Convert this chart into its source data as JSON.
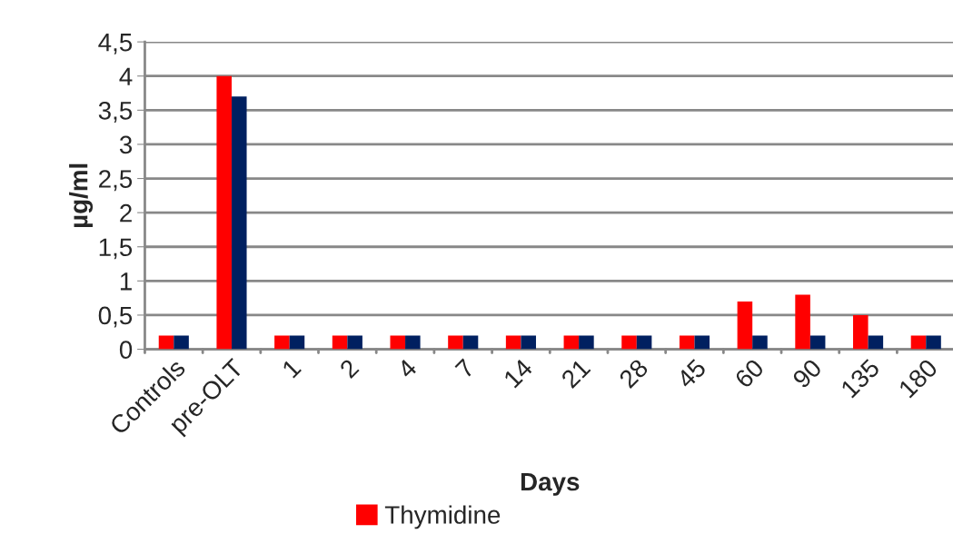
{
  "chart_data": {
    "type": "bar",
    "xlabel": "Days",
    "ylabel": "µg/ml",
    "categories": [
      "Controls",
      "pre-OLT",
      "1",
      "2",
      "4",
      "7",
      "14",
      "21",
      "28",
      "45",
      "60",
      "90",
      "135",
      "180"
    ],
    "series": [
      {
        "name": "Thymidine",
        "color": "#ff0000",
        "values": [
          0.2,
          4.0,
          0.2,
          0.2,
          0.2,
          0.2,
          0.2,
          0.2,
          0.2,
          0.2,
          0.7,
          0.8,
          0.5,
          0.2
        ]
      },
      {
        "color": "#002060",
        "values": [
          0.2,
          3.7,
          0.2,
          0.2,
          0.2,
          0.2,
          0.2,
          0.2,
          0.2,
          0.2,
          0.2,
          0.2,
          0.2,
          0.2
        ]
      }
    ],
    "ylim": [
      0,
      4.5
    ],
    "yticks": [
      0,
      {
        "value": 0.5,
        "label": "0,5"
      },
      1,
      {
        "value": 1.5,
        "label": "1,5"
      },
      2,
      {
        "value": 2.5,
        "label": "2,5"
      },
      3,
      {
        "value": 3.5,
        "label": "3,5"
      },
      4,
      {
        "value": 4.5,
        "label": "4,5"
      }
    ],
    "grid": "y",
    "legend": "bottom"
  }
}
